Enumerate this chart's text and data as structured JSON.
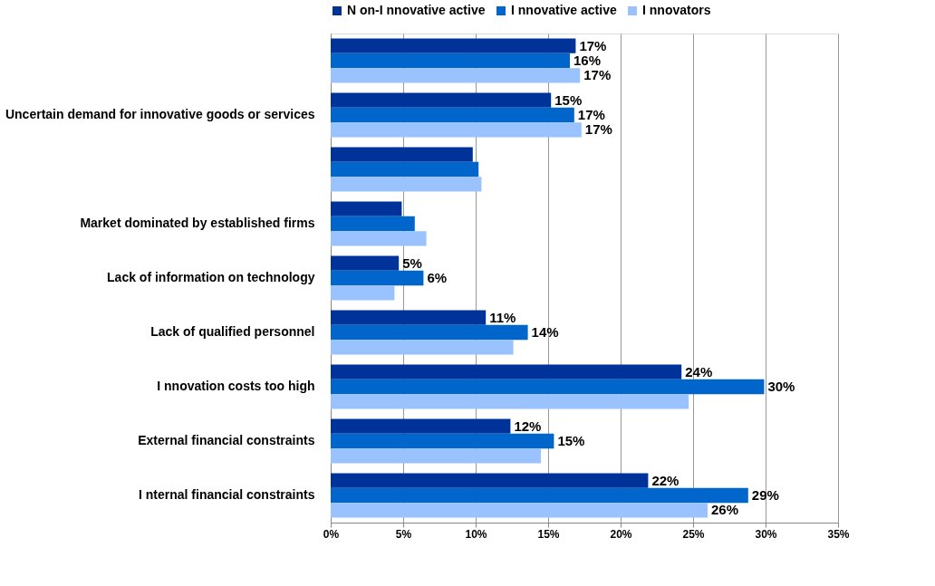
{
  "chart_data": {
    "type": "bar",
    "orientation": "horizontal",
    "categories": [
      null,
      "Uncertain demand for innovative goods or services",
      null,
      "Market dominated by established firms",
      "Lack of  information on technology",
      "Lack of  qualified personnel",
      "I nnovation costs too high",
      "External financial constraints",
      "I nternal financial constraints"
    ],
    "series": [
      {
        "name": "N on-I nnovative active",
        "color": "#003399",
        "values": [
          16.9,
          15.2,
          9.8,
          4.9,
          4.7,
          10.7,
          24.2,
          12.4,
          21.9
        ],
        "value_labels": [
          "17%",
          "15%",
          null,
          null,
          "5%",
          "11%",
          "24%",
          "12%",
          "22%"
        ]
      },
      {
        "name": "I nnovative active",
        "color": "#0066cc",
        "values": [
          16.5,
          16.8,
          10.2,
          5.8,
          6.4,
          13.6,
          29.9,
          15.4,
          28.8
        ],
        "value_labels": [
          "16%",
          "17%",
          null,
          null,
          "6%",
          "14%",
          "30%",
          "15%",
          "29%"
        ]
      },
      {
        "name": "I nnovators",
        "color": "#99c2ff",
        "values": [
          17.2,
          17.3,
          10.4,
          6.6,
          4.4,
          12.6,
          24.7,
          14.5,
          26.0
        ],
        "value_labels": [
          "17%",
          "17%",
          null,
          null,
          null,
          null,
          null,
          null,
          "26%"
        ]
      }
    ],
    "xlim": [
      0,
      35
    ],
    "xticks": [
      {
        "value": 0,
        "label": "0%"
      },
      {
        "value": 5,
        "label": "5%"
      },
      {
        "value": 10,
        "label": "10%"
      },
      {
        "value": 15,
        "label": "15%"
      },
      {
        "value": 20,
        "label": "20%"
      },
      {
        "value": 25,
        "label": "25%"
      },
      {
        "value": 30,
        "label": "30%"
      },
      {
        "value": 35,
        "label": "35%"
      }
    ],
    "grid": "x",
    "legend": "top"
  }
}
